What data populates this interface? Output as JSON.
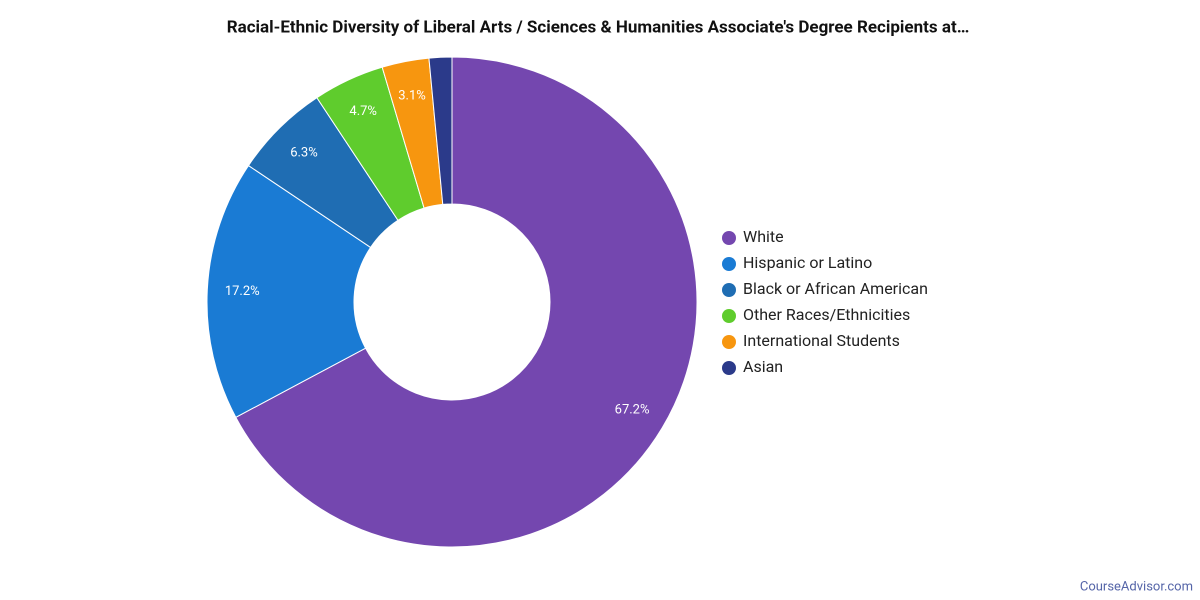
{
  "chart_data": {
    "type": "donut",
    "title": "Racial-Ethnic Diversity of Liberal Arts / Sciences & Humanities Associate's Degree Recipients at…",
    "categories": [
      "White",
      "Hispanic or Latino",
      "Black or African American",
      "Other Races/Ethnicities",
      "International Students",
      "Asian"
    ],
    "values": [
      67.2,
      17.2,
      6.3,
      4.7,
      3.1,
      1.5
    ],
    "value_labels": [
      "67.2%",
      "17.2%",
      "6.3%",
      "4.7%",
      "3.1%",
      null
    ],
    "colors": [
      "#7447af",
      "#1a7bd4",
      "#1f6db3",
      "#5fcc2d",
      "#f7960f",
      "#2b3a8a"
    ],
    "legend": "right",
    "source": "CourseAdvisor.com"
  }
}
